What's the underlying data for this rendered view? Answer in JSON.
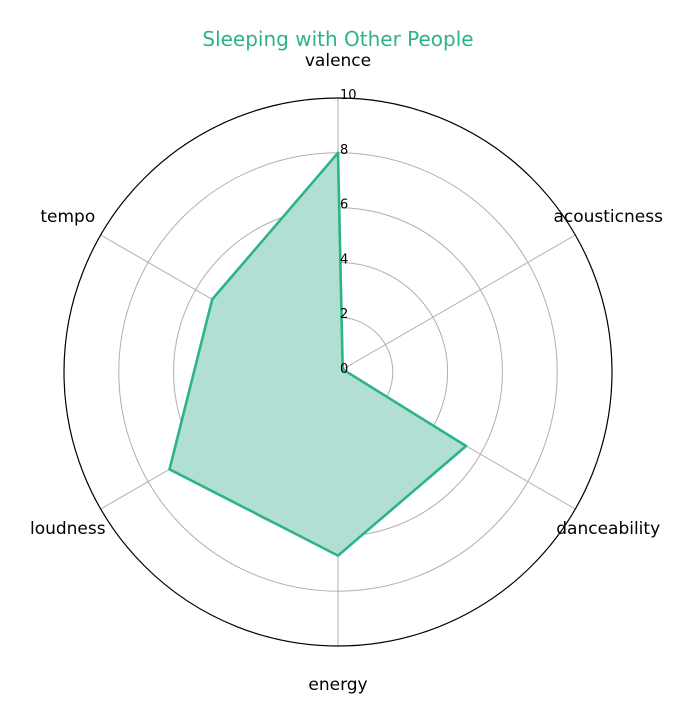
{
  "chart_data": {
    "type": "radar",
    "title": "Sleeping with Other People",
    "axes": [
      "valence",
      "acousticness",
      "danceability",
      "energy",
      "loudness",
      "tempo"
    ],
    "series": [
      {
        "values": [
          8.0,
          0.2,
          5.4,
          6.7,
          7.1,
          5.3
        ]
      }
    ],
    "rlim": [
      0,
      10
    ],
    "rticks": [
      "0",
      "2",
      "4",
      "6",
      "8",
      "10"
    ],
    "grid": true,
    "legend": "none"
  },
  "colors": {
    "title": "#2db38a",
    "series_line": "#2db38a",
    "series_fill": "#b2dfd3",
    "grid": "#b0b0b0",
    "outer_frame": "#000000"
  }
}
